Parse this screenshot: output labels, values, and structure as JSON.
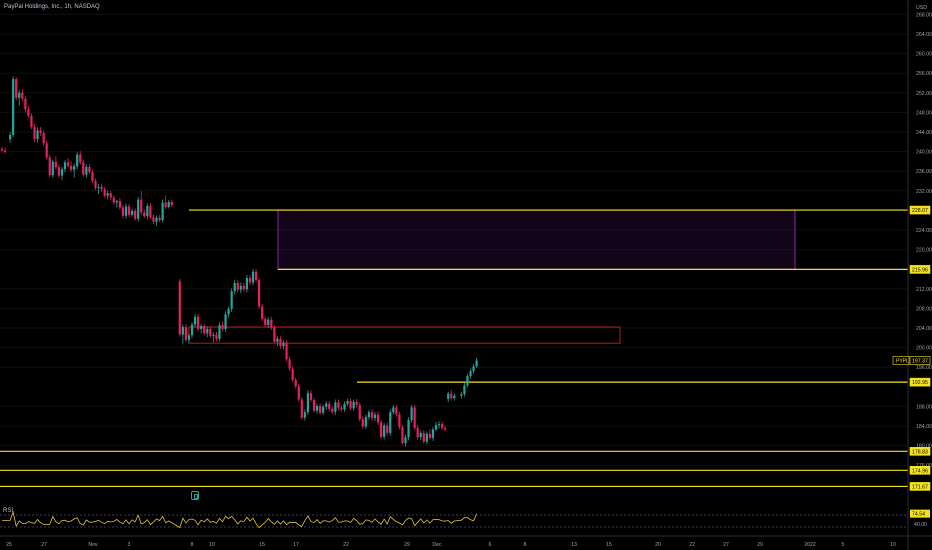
{
  "header": {
    "symbol": "PayPal Holdings, Inc., 1h, NASDAQ",
    "currency": "USD"
  },
  "chart_data": {
    "type": "candlestick",
    "title": "PayPal Holdings, Inc., 1h, NASDAQ",
    "y_axis": {
      "currency": "USD",
      "range": [
        176,
        268
      ],
      "ticks": [
        268,
        264,
        260,
        256,
        252,
        248,
        244,
        240,
        236,
        232,
        224,
        220,
        212,
        208,
        204,
        200,
        196,
        188,
        184,
        180,
        176
      ]
    },
    "x_ticks": [
      "25",
      "27",
      "Nov",
      "3",
      "8",
      "10",
      "15",
      "17",
      "22",
      "29",
      "Dec",
      "6",
      "8",
      "13",
      "15",
      "20",
      "22",
      "27",
      "29",
      "2022",
      "5",
      "10"
    ],
    "price_badges": [
      {
        "label": "228.07",
        "value": 228.07,
        "style": "level"
      },
      {
        "label": "215.96",
        "value": 215.96,
        "style": "level"
      },
      {
        "label": "197.37",
        "value": 197.37,
        "style": "price",
        "tag": "PYPL"
      },
      {
        "label": "192.95",
        "value": 192.95,
        "style": "level"
      },
      {
        "label": "178.83",
        "value": 178.83,
        "style": "level"
      },
      {
        "label": "174.96",
        "value": 174.96,
        "style": "level"
      },
      {
        "label": "171.67",
        "value": 171.67,
        "style": "level"
      }
    ],
    "zones": [
      {
        "top": 228.07,
        "bottom": 215.96,
        "color": "#6a1b9a",
        "border": "#8e24aa"
      },
      {
        "top": 204.2,
        "bottom": 200.9,
        "color": "none",
        "border": "#b71c1c"
      }
    ],
    "series": [
      {
        "name": "candles",
        "ohlc": [
          [
            240.5,
            241.0,
            239.8,
            240.2
          ],
          [
            240.2,
            240.8,
            239.6,
            239.9
          ],
          [
            242.5,
            244.0,
            241.8,
            243.4
          ],
          [
            243.4,
            255.4,
            243.0,
            254.8
          ],
          [
            254.8,
            255.2,
            250.5,
            251.0
          ],
          [
            251.0,
            252.6,
            249.4,
            252.0
          ],
          [
            252.0,
            252.8,
            250.3,
            250.8
          ],
          [
            250.8,
            251.4,
            248.0,
            248.6
          ],
          [
            248.6,
            249.3,
            246.9,
            247.3
          ],
          [
            247.3,
            247.8,
            244.6,
            245.0
          ],
          [
            245.0,
            245.6,
            242.0,
            242.6
          ],
          [
            242.6,
            244.9,
            241.8,
            244.3
          ],
          [
            244.3,
            245.0,
            243.2,
            243.8
          ],
          [
            243.8,
            244.3,
            241.2,
            241.7
          ],
          [
            241.7,
            242.2,
            238.4,
            238.8
          ],
          [
            238.8,
            239.4,
            234.7,
            235.2
          ],
          [
            235.2,
            238.4,
            234.7,
            237.9
          ],
          [
            237.9,
            239.0,
            236.3,
            236.8
          ],
          [
            236.8,
            237.4,
            234.6,
            235.1
          ],
          [
            235.1,
            236.9,
            234.2,
            236.4
          ],
          [
            236.4,
            238.3,
            235.8,
            237.8
          ],
          [
            237.8,
            238.7,
            236.7,
            237.1
          ],
          [
            237.1,
            238.1,
            235.8,
            236.3
          ],
          [
            236.3,
            237.6,
            234.7,
            237.0
          ],
          [
            237.0,
            239.9,
            236.4,
            239.4
          ],
          [
            239.4,
            240.1,
            237.3,
            237.8
          ],
          [
            237.8,
            238.4,
            234.8,
            235.3
          ],
          [
            235.3,
            237.4,
            234.7,
            236.9
          ],
          [
            236.9,
            237.5,
            235.4,
            235.8
          ],
          [
            235.8,
            236.3,
            233.6,
            234.0
          ],
          [
            234.0,
            234.5,
            232.1,
            232.6
          ],
          [
            232.6,
            233.4,
            231.3,
            232.8
          ],
          [
            232.8,
            233.5,
            231.8,
            232.3
          ],
          [
            232.3,
            232.8,
            230.6,
            231.0
          ],
          [
            231.0,
            232.0,
            230.2,
            231.5
          ],
          [
            231.5,
            232.0,
            230.1,
            230.6
          ],
          [
            230.6,
            231.1,
            229.2,
            229.6
          ],
          [
            229.6,
            230.2,
            228.6,
            229.9
          ],
          [
            229.9,
            230.5,
            228.1,
            228.6
          ],
          [
            228.6,
            229.1,
            226.4,
            226.9
          ],
          [
            226.9,
            229.4,
            226.3,
            228.8
          ],
          [
            228.8,
            229.3,
            226.6,
            227.1
          ],
          [
            227.1,
            228.4,
            226.7,
            227.9
          ],
          [
            227.9,
            228.4,
            225.9,
            226.3
          ],
          [
            226.3,
            230.8,
            225.7,
            230.2
          ],
          [
            230.2,
            231.9,
            227.1,
            227.6
          ],
          [
            227.6,
            228.2,
            226.4,
            226.8
          ],
          [
            226.8,
            229.4,
            226.2,
            228.9
          ],
          [
            228.9,
            229.4,
            226.2,
            226.6
          ],
          [
            226.6,
            227.2,
            225.2,
            225.7
          ],
          [
            225.7,
            227.0,
            224.9,
            226.5
          ],
          [
            226.5,
            227.1,
            225.6,
            226.0
          ],
          [
            226.0,
            230.2,
            225.6,
            229.6
          ],
          [
            229.6,
            231.0,
            228.3,
            228.7
          ],
          [
            228.7,
            230.1,
            228.4,
            229.7
          ],
          [
            229.7,
            230.2,
            228.7,
            229.1
          ],
          [
            213.5,
            214.0,
            202.2,
            202.7
          ],
          [
            202.7,
            204.7,
            200.8,
            204.2
          ],
          [
            204.2,
            204.8,
            201.2,
            201.6
          ],
          [
            201.6,
            203.0,
            200.9,
            202.5
          ],
          [
            202.5,
            205.2,
            201.9,
            204.7
          ],
          [
            204.7,
            206.8,
            204.1,
            206.3
          ],
          [
            206.3,
            206.9,
            203.3,
            203.8
          ],
          [
            203.8,
            204.9,
            202.9,
            204.4
          ],
          [
            204.4,
            204.9,
            202.5,
            202.9
          ],
          [
            202.9,
            204.3,
            202.1,
            203.8
          ],
          [
            203.8,
            204.3,
            202.0,
            202.4
          ],
          [
            202.4,
            203.1,
            201.1,
            202.6
          ],
          [
            202.6,
            203.2,
            201.3,
            201.8
          ],
          [
            201.8,
            205.2,
            201.2,
            204.6
          ],
          [
            204.6,
            205.3,
            203.3,
            203.8
          ],
          [
            203.8,
            207.4,
            203.2,
            206.8
          ],
          [
            206.8,
            208.4,
            206.2,
            207.9
          ],
          [
            207.9,
            212.1,
            207.3,
            211.5
          ],
          [
            211.5,
            213.8,
            210.9,
            213.2
          ],
          [
            213.2,
            213.8,
            211.3,
            211.8
          ],
          [
            211.8,
            213.3,
            211.1,
            212.6
          ],
          [
            212.6,
            213.2,
            211.4,
            211.9
          ],
          [
            211.9,
            214.8,
            211.3,
            214.2
          ],
          [
            214.2,
            214.8,
            212.8,
            213.3
          ],
          [
            213.3,
            216.1,
            212.7,
            215.5
          ],
          [
            215.5,
            216.0,
            213.3,
            213.8
          ],
          [
            213.8,
            214.2,
            207.9,
            208.4
          ],
          [
            208.4,
            208.9,
            205.4,
            205.9
          ],
          [
            205.9,
            206.3,
            204.1,
            204.6
          ],
          [
            204.6,
            206.2,
            204.0,
            205.7
          ],
          [
            205.7,
            206.3,
            203.6,
            204.1
          ],
          [
            204.1,
            204.6,
            200.8,
            201.2
          ],
          [
            201.2,
            202.3,
            200.3,
            201.8
          ],
          [
            201.8,
            202.3,
            199.8,
            200.3
          ],
          [
            200.3,
            201.5,
            199.7,
            201.0
          ],
          [
            201.0,
            201.5,
            197.2,
            197.6
          ],
          [
            197.6,
            198.2,
            195.2,
            195.7
          ],
          [
            195.7,
            196.2,
            193.0,
            193.4
          ],
          [
            193.4,
            193.9,
            191.6,
            192.1
          ],
          [
            192.1,
            192.6,
            188.9,
            189.4
          ],
          [
            189.4,
            189.9,
            185.3,
            185.7
          ],
          [
            185.7,
            187.4,
            185.1,
            186.8
          ],
          [
            186.8,
            191.3,
            186.3,
            190.7
          ],
          [
            190.7,
            191.3,
            188.9,
            189.3
          ],
          [
            189.3,
            189.8,
            186.7,
            187.1
          ],
          [
            187.1,
            188.6,
            186.5,
            188.1
          ],
          [
            188.1,
            188.6,
            186.3,
            186.7
          ],
          [
            186.7,
            188.4,
            186.2,
            187.9
          ],
          [
            187.9,
            189.1,
            187.3,
            188.6
          ],
          [
            188.6,
            189.1,
            187.0,
            187.5
          ],
          [
            187.5,
            188.0,
            186.5,
            186.9
          ],
          [
            186.9,
            189.4,
            186.3,
            188.8
          ],
          [
            188.8,
            189.4,
            187.2,
            187.7
          ],
          [
            187.7,
            188.2,
            187.0,
            187.4
          ],
          [
            187.4,
            189.0,
            186.9,
            188.5
          ],
          [
            188.5,
            189.6,
            188.1,
            189.1
          ],
          [
            189.1,
            189.6,
            187.2,
            187.6
          ],
          [
            187.6,
            189.4,
            187.1,
            188.9
          ],
          [
            188.9,
            189.5,
            187.8,
            188.3
          ],
          [
            188.3,
            188.8,
            184.9,
            185.4
          ],
          [
            185.4,
            185.9,
            183.5,
            183.9
          ],
          [
            183.9,
            186.3,
            183.4,
            185.8
          ],
          [
            185.8,
            187.3,
            185.3,
            186.8
          ],
          [
            186.8,
            187.4,
            185.1,
            185.6
          ],
          [
            185.6,
            186.8,
            185.0,
            186.3
          ],
          [
            186.3,
            186.9,
            184.2,
            184.7
          ],
          [
            184.7,
            185.2,
            181.3,
            181.8
          ],
          [
            181.8,
            184.6,
            181.2,
            184.1
          ],
          [
            184.1,
            184.7,
            182.1,
            182.6
          ],
          [
            182.6,
            187.4,
            182.0,
            186.8
          ],
          [
            186.8,
            188.3,
            186.3,
            187.8
          ],
          [
            187.8,
            188.3,
            185.9,
            186.4
          ],
          [
            186.4,
            186.9,
            183.3,
            183.8
          ],
          [
            183.8,
            184.2,
            180.2,
            180.5
          ],
          [
            180.5,
            182.3,
            179.8,
            181.7
          ],
          [
            181.7,
            185.8,
            181.1,
            185.2
          ],
          [
            185.2,
            188.3,
            184.7,
            187.8
          ],
          [
            187.8,
            188.3,
            183.2,
            183.6
          ],
          [
            183.6,
            184.2,
            181.2,
            181.7
          ],
          [
            181.7,
            183.1,
            181.1,
            182.6
          ],
          [
            182.6,
            183.2,
            180.4,
            180.8
          ],
          [
            180.8,
            182.9,
            180.3,
            182.4
          ],
          [
            182.4,
            183.3,
            181.2,
            181.6
          ],
          [
            181.6,
            183.8,
            181.0,
            183.3
          ],
          [
            183.3,
            184.8,
            182.9,
            184.2
          ],
          [
            184.2,
            185.0,
            183.5,
            184.4
          ],
          [
            184.4,
            184.9,
            183.2,
            183.6
          ],
          [
            183.6,
            184.1,
            182.9,
            183.3
          ],
          [
            189.5,
            191.0,
            188.9,
            190.6
          ],
          [
            190.6,
            191.3,
            189.2,
            189.7
          ],
          [
            189.7,
            190.7,
            189.2,
            190.2
          ],
          [
            190.2,
            191.0,
            189.6,
            190.5
          ],
          [
            190.5,
            192.8,
            190.0,
            192.3
          ],
          [
            192.3,
            194.7,
            191.9,
            194.2
          ],
          [
            194.2,
            195.7,
            193.7,
            195.2
          ],
          [
            195.2,
            196.7,
            194.7,
            196.2
          ],
          [
            196.2,
            197.9,
            195.8,
            197.37
          ]
        ]
      }
    ],
    "rsi": {
      "name": "RSI",
      "label": "RSI",
      "value_label": "74.54",
      "value": 74.54,
      "scale_label": "40.00",
      "levels": [
        70,
        30
      ]
    }
  }
}
